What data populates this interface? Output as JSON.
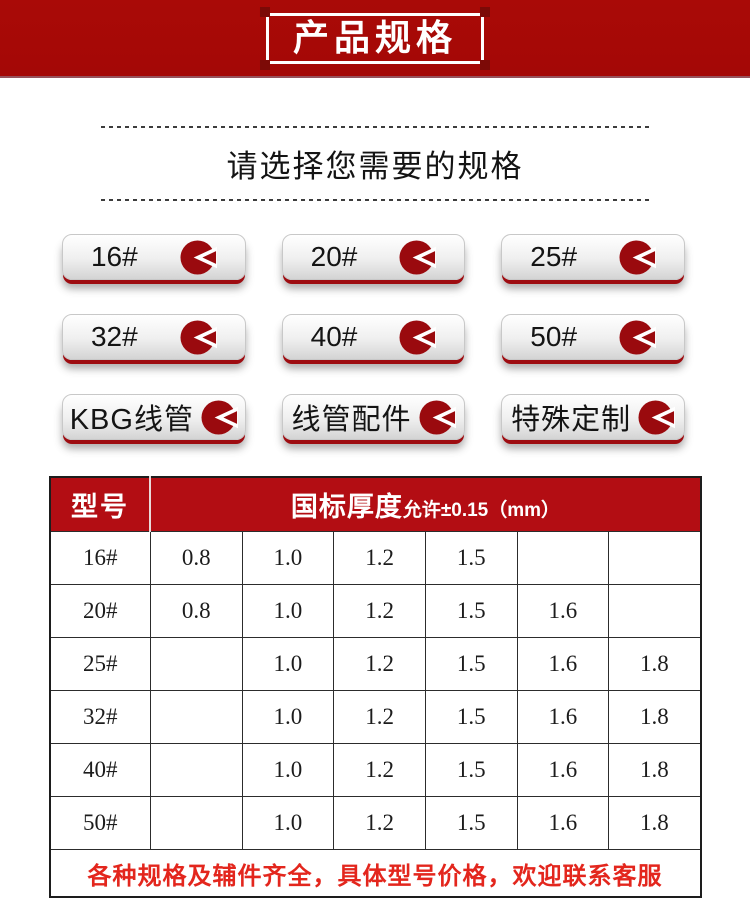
{
  "banner": {
    "title": "产品规格"
  },
  "selector": {
    "heading": "请选择您需要的规格"
  },
  "buttons": [
    {
      "label": "16#",
      "type": "num"
    },
    {
      "label": "20#",
      "type": "num"
    },
    {
      "label": "25#",
      "type": "num"
    },
    {
      "label": "32#",
      "type": "num"
    },
    {
      "label": "40#",
      "type": "num"
    },
    {
      "label": "50#",
      "type": "num"
    },
    {
      "label": "KBG线管",
      "type": "text"
    },
    {
      "label": "线管配件",
      "type": "text"
    },
    {
      "label": "特殊定制",
      "type": "text"
    }
  ],
  "icon": {
    "name": "pie-arrow-icon",
    "circle_color": "#9a0a0e",
    "notch_color": "#ffffff"
  },
  "table": {
    "header": {
      "model": "型号",
      "spec_main": "国标厚度",
      "spec_sub": "允许±0.15（mm）"
    },
    "rows": [
      {
        "model": "16#",
        "values": [
          "0.8",
          "1.0",
          "1.2",
          "1.5",
          "",
          ""
        ]
      },
      {
        "model": "20#",
        "values": [
          "0.8",
          "1.0",
          "1.2",
          "1.5",
          "1.6",
          ""
        ]
      },
      {
        "model": "25#",
        "values": [
          "",
          "1.0",
          "1.2",
          "1.5",
          "1.6",
          "1.8"
        ]
      },
      {
        "model": "32#",
        "values": [
          "",
          "1.0",
          "1.2",
          "1.5",
          "1.6",
          "1.8"
        ]
      },
      {
        "model": "40#",
        "values": [
          "",
          "1.0",
          "1.2",
          "1.5",
          "1.6",
          "1.8"
        ]
      },
      {
        "model": "50#",
        "values": [
          "",
          "1.0",
          "1.2",
          "1.5",
          "1.6",
          "1.8"
        ]
      }
    ],
    "footer_note": "各种规格及辅件齐全，具体型号价格，欢迎联系客服"
  },
  "colors": {
    "band_red": "#a40806",
    "header_red": "#b30d13",
    "button_shadow_red": "#9e0c11",
    "icon_red": "#9a0a0e",
    "footer_text_red": "#e3261d",
    "notch_red": "#7c0a07"
  }
}
